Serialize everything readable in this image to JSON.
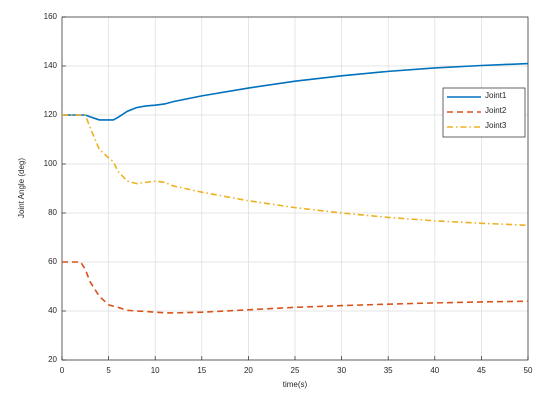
{
  "chart_data": {
    "type": "line",
    "x_label": "time(s)",
    "y_label": "Joint Angle (deg)",
    "x": [
      0,
      2,
      2.5,
      3,
      4,
      5,
      5.5,
      6,
      7,
      8,
      9,
      10,
      11,
      12,
      15,
      20,
      25,
      30,
      35,
      40,
      45,
      50
    ],
    "series": [
      {
        "name": "Joint1",
        "color": "#0072bd",
        "style": "solid",
        "values": [
          120,
          120,
          120,
          119.3,
          118,
          118,
          118,
          119,
          121.5,
          123,
          123.7,
          124,
          124.5,
          125.5,
          127.8,
          131,
          133.8,
          136,
          137.8,
          139.2,
          140.2,
          141
        ]
      },
      {
        "name": "Joint2",
        "color": "#d95319",
        "style": "dashed",
        "values": [
          60,
          60,
          57,
          52,
          46,
          42.5,
          42,
          41.5,
          40.3,
          40,
          39.8,
          39.5,
          39.3,
          39.2,
          39.5,
          40.5,
          41.5,
          42.2,
          42.8,
          43.3,
          43.7,
          44
        ]
      },
      {
        "name": "Joint3",
        "color": "#edb120",
        "style": "dashdot",
        "values": [
          120,
          120,
          120,
          115,
          106,
          102.5,
          101,
          97,
          93,
          92,
          92.5,
          93,
          92.5,
          91,
          88.5,
          85,
          82.2,
          80,
          78.2,
          76.8,
          75.8,
          75
        ]
      }
    ],
    "xlim": [
      0,
      50
    ],
    "xticks": [
      0,
      5,
      10,
      15,
      20,
      25,
      30,
      35,
      40,
      45,
      50
    ],
    "ylim": [
      20,
      160
    ],
    "yticks": [
      20,
      40,
      60,
      80,
      100,
      120,
      140,
      160
    ],
    "grid": true,
    "legend": "upper right"
  }
}
